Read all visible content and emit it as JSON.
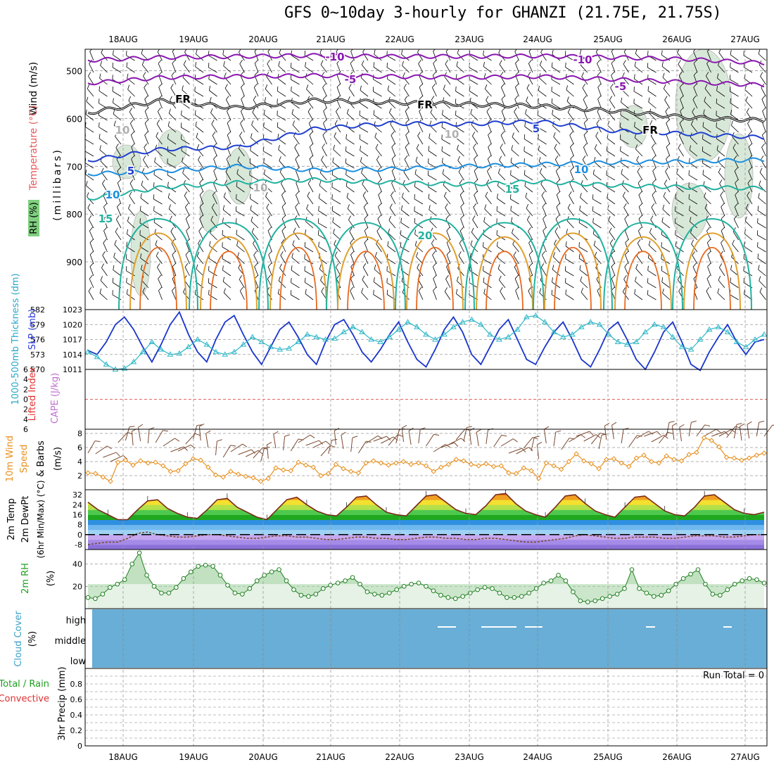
{
  "title": "GFS 0~10day 3-hourly for GHANZI (21.75E, 21.75S)",
  "dates": [
    "18AUG",
    "19AUG",
    "20AUG",
    "21AUG",
    "22AUG",
    "23AUG",
    "24AUG",
    "25AUG",
    "26AUG",
    "27AUG"
  ],
  "colors": {
    "purple": "#8a17b0",
    "black": "#000000",
    "blue_dark": "#1f3fcf",
    "blue_light": "#1c8fe0",
    "teal": "#21b2a0",
    "orange": "#e0a030",
    "red_orange": "#e86a20",
    "magenta": "#d0208a",
    "rh_green": "#c8dfc8",
    "slp": "#1a35cc",
    "thick": "#30b8c8",
    "wind10": "#e8901e",
    "barb": "#7a4a30",
    "cloud": "#68aed6",
    "precip_grid": "#b0b0b0"
  },
  "chart_data": [
    {
      "type": "contour-cross-section",
      "name": "Upper air temperature / RH / wind",
      "ylabel": "(millibars)",
      "axis_titles": [
        "Wind (m/s)",
        "Temperature (°C)",
        "RH (%)"
      ],
      "yticks": [
        500,
        600,
        700,
        800,
        900
      ],
      "ylim": [
        1000,
        455
      ],
      "contour_labels": [
        "-10",
        "-10",
        "-5",
        "-5",
        "FR",
        "FR",
        "FR",
        "5",
        "5",
        "10",
        "10",
        "15",
        "15",
        "20",
        "10",
        "10",
        "10"
      ],
      "isotherms": [
        {
          "label": "-10",
          "color": "purple",
          "pressure": [
            478,
            472,
            470,
            468,
            470,
            470,
            469,
            472,
            476,
            484
          ]
        },
        {
          "label": "-5",
          "color": "purple",
          "pressure": [
            526,
            514,
            512,
            510,
            512,
            514,
            512,
            518,
            524,
            530
          ]
        },
        {
          "label": "FR",
          "color": "black",
          "pressure": [
            588,
            562,
            578,
            562,
            566,
            570,
            574,
            584,
            598,
            604
          ]
        },
        {
          "label": "5",
          "color": "blue_dark",
          "pressure": [
            688,
            664,
            660,
            622,
            610,
            612,
            606,
            626,
            632,
            640
          ]
        },
        {
          "label": "10",
          "color": "blue_light",
          "pressure": [
            716,
            710,
            700,
            708,
            706,
            700,
            696,
            692,
            690,
            686
          ]
        },
        {
          "label": "15",
          "color": "teal",
          "pressure": [
            768,
            744,
            734,
            728,
            734,
            738,
            732,
            740,
            744,
            746
          ]
        }
      ]
    },
    {
      "type": "line",
      "name": "SLP and thickness",
      "axis_titles": [
        "SLP (mb)",
        "1000-500mb Thickness (dm)"
      ],
      "left_ticks": [
        582,
        579,
        576,
        573,
        570
      ],
      "right_ticks": [
        1023,
        1020,
        1017,
        1014,
        1011
      ],
      "series": [
        {
          "name": "SLP (mb)",
          "values": [
            1014.8,
            1014.0,
            1016.5,
            1020.0,
            1021.5,
            1019.0,
            1015.5,
            1012.5,
            1016.0,
            1020.0,
            1022.5,
            1018.0,
            1014.5,
            1012.5,
            1017.0,
            1020.5,
            1021.8,
            1018.0,
            1014.5,
            1012.0,
            1015.5,
            1019.0,
            1020.5,
            1017.5,
            1014.0,
            1012.0,
            1016.5,
            1020.0,
            1021.0,
            1018.0,
            1014.5,
            1012.5,
            1015.0,
            1018.0,
            1020.5,
            1016.5,
            1013.0,
            1011.5,
            1015.0,
            1019.0,
            1021.5,
            1018.5,
            1014.0,
            1012.0,
            1015.5,
            1019.0,
            1021.0,
            1017.0,
            1013.0,
            1012.0,
            1015.5,
            1018.5,
            1020.5,
            1017.0,
            1013.0,
            1011.5,
            1015.0,
            1019.0,
            1020.5,
            1017.0,
            1013.0,
            1011.0,
            1014.5,
            1018.5,
            1020.5,
            1016.5,
            1012.0,
            1010.8,
            1014.5,
            1017.5,
            1020.0,
            1016.5,
            1014.0,
            1016.5,
            1017.0
          ]
        },
        {
          "name": "Thickness (dm)",
          "values": [
            573.5,
            572.5,
            571.0,
            570.0,
            570.2,
            571.5,
            573.5,
            575.5,
            574.0,
            573.0,
            573.2,
            574.5,
            576.0,
            575.0,
            573.5,
            573.0,
            573.5,
            575.0,
            576.5,
            575.5,
            574.5,
            574.0,
            574.2,
            575.5,
            577.0,
            576.5,
            576.0,
            576.2,
            577.5,
            578.5,
            577.5,
            576.0,
            575.5,
            576.5,
            578.0,
            579.5,
            578.5,
            577.0,
            576.0,
            577.0,
            578.5,
            579.5,
            580.0,
            579.0,
            577.0,
            576.0,
            576.5,
            578.0,
            580.5,
            580.8,
            579.5,
            577.5,
            576.5,
            577.0,
            578.5,
            579.5,
            579.0,
            577.0,
            575.5,
            575.0,
            575.5,
            577.5,
            579.0,
            578.5,
            576.5,
            574.5,
            574.0,
            576.0,
            578.0,
            578.5,
            577.5,
            575.5,
            574.5,
            576.0,
            577.0
          ]
        }
      ]
    },
    {
      "type": "line",
      "name": "Lifted Index and CAPE",
      "axis_titles": [
        "Lifted Index",
        "CAPE (J/kg)"
      ],
      "yticks": [
        "6",
        "4",
        "2",
        "0",
        "2",
        "4",
        "6"
      ],
      "series": [
        {
          "name": "Lifted Index",
          "values": []
        },
        {
          "name": "CAPE (J/kg)",
          "values": []
        }
      ]
    },
    {
      "type": "line",
      "name": "10m wind speed and barbs",
      "axis_titles": [
        "10m Wind",
        "Speed",
        "(m/s)",
        "& Barbs"
      ],
      "yticks": [
        8,
        6,
        4,
        2
      ],
      "series": [
        {
          "name": "10m Wind Speed (m/s)",
          "values": [
            2.4,
            2.3,
            1.8,
            1.2,
            3.9,
            4.2,
            3.5,
            4.1,
            3.8,
            3.9,
            3.4,
            2.6,
            2.7,
            3.7,
            4.4,
            4.2,
            3.2,
            2.1,
            1.8,
            2.6,
            2.2,
            1.9,
            1.7,
            1.2,
            1.6,
            3.1,
            2.8,
            2.7,
            3.9,
            3.5,
            3.2,
            2.0,
            2.3,
            3.6,
            3.0,
            2.6,
            2.4,
            3.8,
            4.1,
            3.8,
            3.5,
            3.8,
            4.0,
            3.6,
            3.8,
            3.4,
            2.6,
            3.2,
            3.6,
            4.3,
            4.1,
            3.6,
            3.4,
            3.7,
            3.3,
            3.4,
            2.4,
            2.3,
            3.1,
            2.7,
            1.6,
            3.8,
            3.4,
            2.9,
            4.0,
            5.1,
            4.1,
            3.7,
            3.0,
            4.3,
            4.4,
            3.8,
            3.3,
            4.5,
            4.9,
            4.0,
            3.8,
            4.8,
            4.3,
            4.1,
            5.0,
            5.3,
            7.4,
            7.0,
            6.1,
            4.6,
            4.5,
            4.2,
            4.5,
            4.9,
            5.2
          ]
        }
      ]
    },
    {
      "type": "area",
      "name": "2m temperature and dewpoint",
      "axis_titles": [
        "2m Temp",
        "2m DewPt",
        "(6hr Min/Max) (°C)"
      ],
      "yticks": [
        32,
        24,
        16,
        8,
        0,
        -8
      ],
      "series": [
        {
          "name": "2m Temp (°C)",
          "values": [
            26,
            20,
            16,
            12,
            12,
            20,
            27,
            28,
            21,
            17,
            14,
            13,
            20,
            28,
            29,
            22,
            18,
            14,
            12,
            20,
            28,
            30,
            24,
            19,
            16,
            15,
            22,
            30,
            31,
            24,
            18,
            16,
            15,
            23,
            31,
            32,
            26,
            20,
            17,
            16,
            23,
            32,
            33,
            25,
            19,
            16,
            14,
            22,
            31,
            32,
            25,
            19,
            16,
            14,
            22,
            30,
            31,
            25,
            19,
            16,
            15,
            22,
            31,
            32,
            26,
            20,
            17,
            16,
            18
          ]
        },
        {
          "name": "2m DewPt (°C)",
          "values": [
            -8,
            -7,
            -6,
            -6,
            -3,
            1,
            2,
            0,
            -1,
            -2,
            -2,
            -1,
            0,
            0,
            -1,
            -2,
            -3,
            -3,
            -2,
            -1,
            -1,
            -2,
            -2,
            -3,
            -4,
            -4,
            -3,
            -2,
            -2,
            -3,
            -3,
            -4,
            -4,
            -3,
            -2,
            -2,
            -3,
            -3,
            -4,
            -4,
            -3,
            -3,
            -4,
            -5,
            -6,
            -6,
            -5,
            -4,
            -3,
            -1,
            0,
            -1,
            -2,
            -3,
            -3,
            -2,
            -2,
            -2,
            -3,
            -3,
            -2,
            -1,
            -1,
            -1,
            -2,
            -2,
            -1,
            0,
            0
          ]
        }
      ]
    },
    {
      "type": "area",
      "name": "2m relative humidity",
      "axis_titles": [
        "2m RH",
        "(%)"
      ],
      "yticks": [
        40,
        20
      ],
      "series": [
        {
          "name": "2m RH (%)",
          "values": [
            10,
            9,
            13,
            19,
            22,
            26,
            40,
            50,
            30,
            20,
            14,
            14,
            19,
            27,
            33,
            38,
            39,
            38,
            30,
            21,
            14,
            13,
            18,
            25,
            30,
            33,
            35,
            25,
            17,
            12,
            11,
            13,
            18,
            21,
            23,
            25,
            28,
            22,
            15,
            13,
            12,
            14,
            17,
            20,
            22,
            23,
            20,
            16,
            12,
            10,
            9,
            11,
            14,
            17,
            19,
            18,
            14,
            10,
            10,
            11,
            14,
            18,
            23,
            25,
            30,
            25,
            15,
            7,
            6,
            7,
            9,
            11,
            13,
            18,
            35,
            18,
            14,
            11,
            12,
            16,
            22,
            27,
            31,
            35,
            22,
            13,
            12,
            17,
            22,
            25,
            27,
            26,
            23
          ]
        }
      ]
    },
    {
      "type": "heatmap",
      "name": "Cloud cover",
      "axis_titles": [
        "Cloud Cover",
        "(%)"
      ],
      "ylabels": [
        "high",
        "middle",
        "low"
      ],
      "series": [
        {
          "name": "Cloud Cover (%)",
          "values": [
            0
          ]
        }
      ]
    },
    {
      "type": "bar",
      "name": "3hr precipitation",
      "axis_titles": [
        "Total / Rain",
        "Convective",
        "3hr Precip (mm)"
      ],
      "yticks": [
        0.8,
        0.6,
        0.4,
        0.2,
        0
      ],
      "ylim": [
        0,
        1
      ],
      "annotation": "Run Total = 0",
      "series": [
        {
          "name": "Total / Rain (mm)",
          "values": [
            0
          ]
        },
        {
          "name": "Convective (mm)",
          "values": [
            0
          ]
        }
      ]
    }
  ]
}
